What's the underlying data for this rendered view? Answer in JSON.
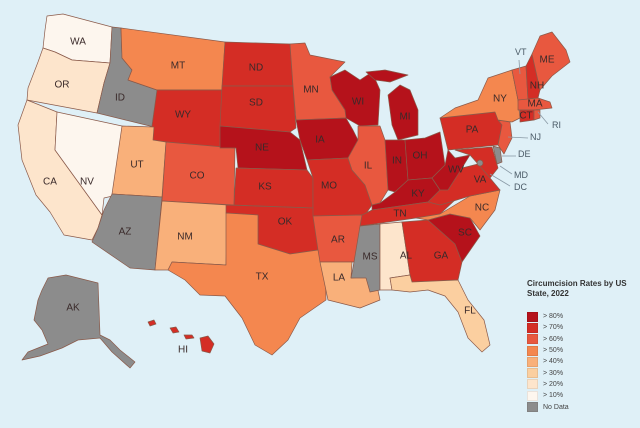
{
  "chart_data": {
    "type": "choropleth",
    "title": "Circumcision Rates by US State, 2022",
    "legend_position": "bottom-right",
    "bins": [
      {
        "key": "b80",
        "label": "> 80%",
        "color": "#b5121b"
      },
      {
        "key": "b70",
        "label": "> 70%",
        "color": "#d42d25"
      },
      {
        "key": "b60",
        "label": "> 60%",
        "color": "#e8583f"
      },
      {
        "key": "b50",
        "label": "> 50%",
        "color": "#f4874f"
      },
      {
        "key": "b40",
        "label": "> 40%",
        "color": "#f9b07a"
      },
      {
        "key": "b30",
        "label": "> 30%",
        "color": "#fbcfa0"
      },
      {
        "key": "b20",
        "label": "> 20%",
        "color": "#fde5cc"
      },
      {
        "key": "b10",
        "label": "> 10%",
        "color": "#fdf6ee"
      },
      {
        "key": "nd",
        "label": "No Data",
        "color": "#8c8c8c"
      }
    ],
    "states": {
      "WA": "> 10%",
      "OR": "> 20%",
      "CA": "> 20%",
      "NV": "> 10%",
      "ID": "No Data",
      "MT": "> 50%",
      "WY": "> 70%",
      "UT": "> 40%",
      "AZ": "No Data",
      "CO": "> 60%",
      "NM": "> 40%",
      "ND": "> 70%",
      "SD": "> 70%",
      "NE": "> 80%",
      "KS": "> 70%",
      "OK": "> 70%",
      "TX": "> 50%",
      "MN": "> 60%",
      "IA": "> 80%",
      "MO": "> 70%",
      "AR": "> 60%",
      "LA": "> 40%",
      "WI": "> 80%",
      "IL": "> 60%",
      "MI": "> 80%",
      "IN": "> 80%",
      "OH": "> 80%",
      "KY": "> 80%",
      "TN": "> 70%",
      "MS": "No Data",
      "AL": "> 20%",
      "GA": "> 70%",
      "FL": "> 30%",
      "SC": "> 80%",
      "NC": "> 50%",
      "VA": "> 70%",
      "WV": "> 80%",
      "PA": "> 70%",
      "NY": "> 50%",
      "NJ": "> 60%",
      "DE": "No Data",
      "MD": "> 70%",
      "DC": "No Data",
      "VT": "> 60%",
      "NH": "> 70%",
      "ME": "> 60%",
      "MA": "> 60%",
      "CT": "> 70%",
      "RI": "> 60%",
      "AK": "No Data",
      "HI": "> 70%"
    }
  },
  "legend": {
    "title": "Circumcision Rates by US State, 2022",
    "items": [
      {
        "label": "> 80%",
        "color": "#b5121b"
      },
      {
        "label": "> 70%",
        "color": "#d42d25"
      },
      {
        "label": "> 60%",
        "color": "#e8583f"
      },
      {
        "label": "> 50%",
        "color": "#f4874f"
      },
      {
        "label": "> 40%",
        "color": "#f9b07a"
      },
      {
        "label": "> 30%",
        "color": "#fbcfa0"
      },
      {
        "label": "> 20%",
        "color": "#fde5cc"
      },
      {
        "label": "> 10%",
        "color": "#fdf6ee"
      },
      {
        "label": "No Data",
        "color": "#8c8c8c"
      }
    ]
  },
  "labels": {
    "WA": "WA",
    "OR": "OR",
    "CA": "CA",
    "NV": "NV",
    "ID": "ID",
    "MT": "MT",
    "WY": "WY",
    "UT": "UT",
    "AZ": "AZ",
    "CO": "CO",
    "NM": "NM",
    "ND": "ND",
    "SD": "SD",
    "NE": "NE",
    "KS": "KS",
    "OK": "OK",
    "TX": "TX",
    "MN": "MN",
    "IA": "IA",
    "MO": "MO",
    "AR": "AR",
    "LA": "LA",
    "WI": "WI",
    "IL": "IL",
    "MI": "MI",
    "IN": "IN",
    "OH": "OH",
    "KY": "KY",
    "TN": "TN",
    "MS": "MS",
    "AL": "AL",
    "GA": "GA",
    "FL": "FL",
    "SC": "SC",
    "NC": "NC",
    "VA": "VA",
    "WV": "WV",
    "PA": "PA",
    "NY": "NY",
    "NJ": "NJ",
    "DE": "DE",
    "MD": "MD",
    "DC": "DC",
    "VT": "VT",
    "NH": "NH",
    "ME": "ME",
    "MA": "MA",
    "CT": "CT",
    "RI": "RI",
    "AK": "AK",
    "HI": "HI"
  }
}
